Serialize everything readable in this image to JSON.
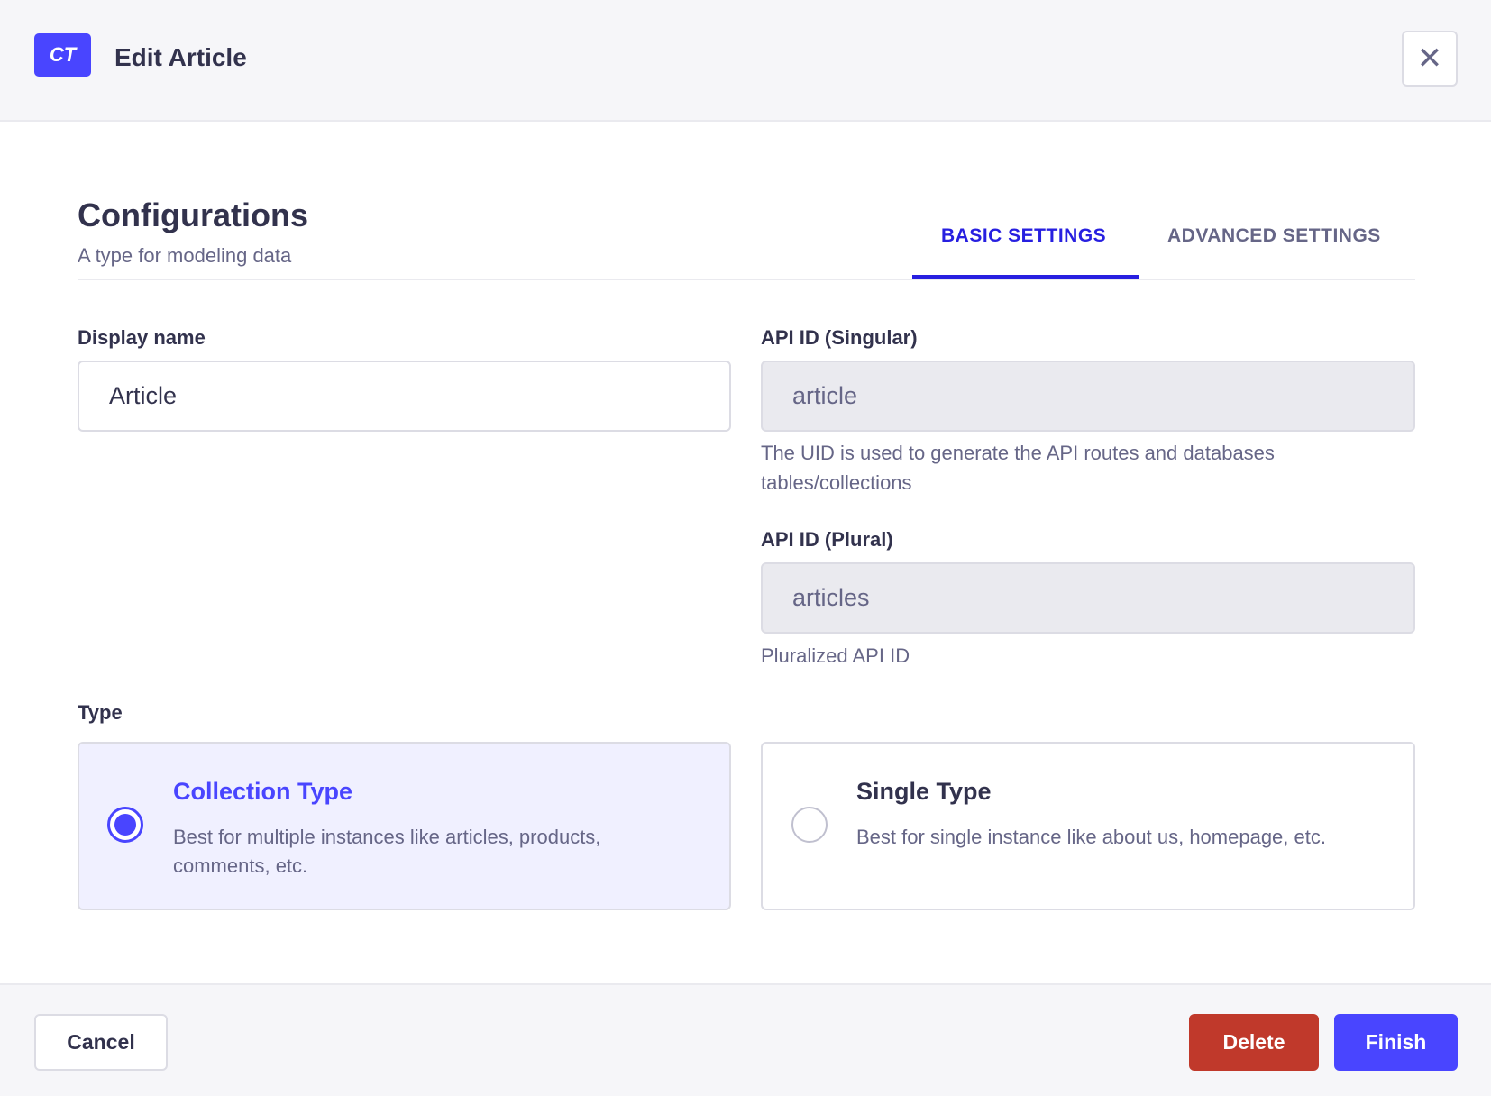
{
  "header": {
    "logo": "CT",
    "title": "Edit Article",
    "close_icon": "close-icon"
  },
  "section": {
    "title": "Configurations",
    "subtitle": "A type for modeling data"
  },
  "tabs": [
    {
      "label": "BASIC SETTINGS",
      "active": true
    },
    {
      "label": "ADVANCED SETTINGS",
      "active": false
    }
  ],
  "fields": {
    "display_name": {
      "label": "Display name",
      "value": "Article"
    },
    "api_singular": {
      "label": "API ID (Singular)",
      "value": "article",
      "help": "The UID is used to generate the API routes and databases tables/collections"
    },
    "api_plural": {
      "label": "API ID (Plural)",
      "value": "articles",
      "help": "Pluralized API ID"
    }
  },
  "type": {
    "label": "Type",
    "options": [
      {
        "title": "Collection Type",
        "description": "Best for multiple instances like articles, products, comments, etc.",
        "selected": true
      },
      {
        "title": "Single Type",
        "description": "Best for single instance like about us, homepage, etc.",
        "selected": false
      }
    ]
  },
  "footer": {
    "cancel": "Cancel",
    "delete": "Delete",
    "finish": "Finish"
  },
  "colors": {
    "primary": "#4945ff",
    "danger": "#c0392b",
    "selected_bg": "#f0f0ff"
  }
}
